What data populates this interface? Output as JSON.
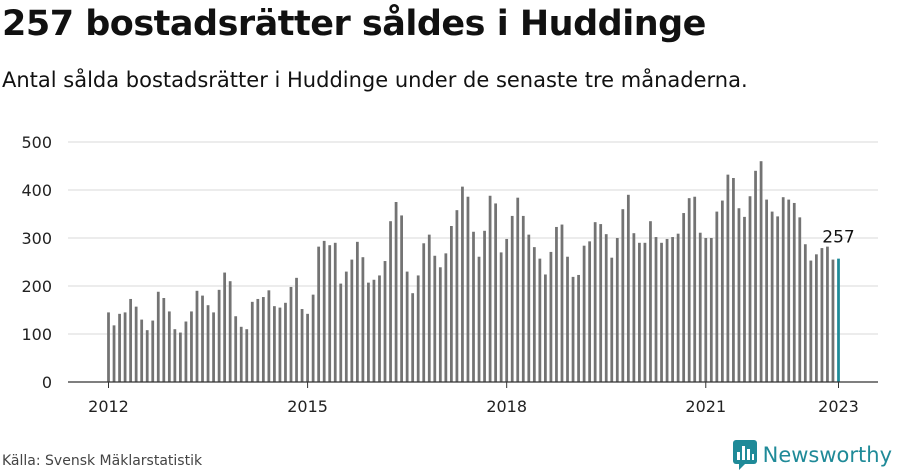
{
  "title": "257 bostadsrätter såldes i Huddinge",
  "subtitle": "Antal sålda bostadsrätter i Huddinge under de senaste tre månaderna.",
  "source": "Källa: Svensk Mäklarstatistik",
  "brand": "Newsworthy",
  "colors": {
    "bar": "#737373",
    "highlight": "#1f8a98",
    "grid": "#d9d9d9",
    "axis": "#333333"
  },
  "chart_data": {
    "type": "bar",
    "x_ticks": [
      "2012",
      "2015",
      "2018",
      "2021",
      "2023"
    ],
    "y_ticks": [
      "0",
      "100",
      "200",
      "300",
      "400",
      "500"
    ],
    "ylim": [
      0,
      500
    ],
    "grid": "horizontal",
    "x_start": "2012-01",
    "x_end": "2023-01",
    "values": [
      145,
      118,
      142,
      145,
      173,
      157,
      130,
      108,
      128,
      188,
      175,
      147,
      110,
      103,
      126,
      147,
      190,
      180,
      160,
      145,
      192,
      228,
      210,
      137,
      115,
      110,
      167,
      173,
      177,
      191,
      158,
      155,
      165,
      198,
      217,
      152,
      142,
      182,
      282,
      294,
      285,
      290,
      205,
      230,
      255,
      292,
      260,
      207,
      213,
      222,
      252,
      335,
      375,
      347,
      230,
      185,
      222,
      289,
      307,
      263,
      239,
      268,
      325,
      358,
      407,
      386,
      313,
      261,
      315,
      388,
      372,
      270,
      298,
      346,
      384,
      346,
      307,
      281,
      257,
      224,
      271,
      323,
      328,
      261,
      219,
      223,
      284,
      293,
      333,
      329,
      308,
      259,
      300,
      360,
      390,
      310,
      290,
      290,
      335,
      302,
      290,
      298,
      302,
      309,
      352,
      383,
      386,
      311,
      300,
      300,
      355,
      378,
      432,
      425,
      362,
      344,
      387,
      440,
      460,
      380,
      355,
      345,
      385,
      380,
      373,
      343,
      287,
      253,
      266,
      279,
      282,
      255,
      257
    ],
    "highlight_label": "257"
  }
}
